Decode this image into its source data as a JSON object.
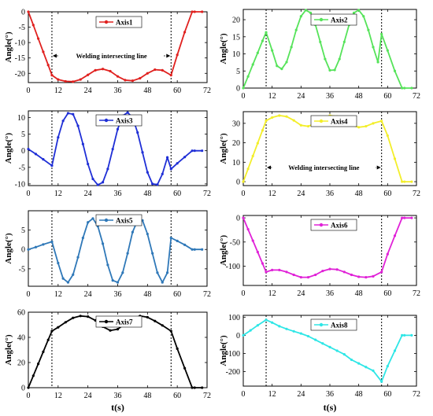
{
  "figure": {
    "xlabel": "t(s)",
    "ylabel": "Angle(°)",
    "annotation": "Welding intersecting line"
  },
  "chart_data": [
    {
      "type": "line",
      "name": "Axis1",
      "color": "#e0211f",
      "xlim": [
        0,
        72
      ],
      "ylim": [
        -23,
        0
      ],
      "xticks": [
        0,
        12,
        24,
        36,
        48,
        60,
        72
      ],
      "yticks": [
        0,
        -5,
        -10,
        -15,
        -20
      ],
      "vlines": [
        9.5,
        57.5
      ],
      "annotation": true,
      "x": [
        0,
        2,
        4,
        6,
        8,
        9.5,
        12,
        15,
        18,
        21,
        24,
        27,
        30,
        33,
        36,
        39,
        42,
        45,
        48,
        51,
        54,
        57.5,
        60,
        63,
        66,
        67,
        70
      ],
      "y": [
        0,
        -4.3,
        -8.7,
        -13,
        -17.3,
        -20.6,
        -22,
        -22.6,
        -22.7,
        -22,
        -20.5,
        -19,
        -18.6,
        -19.3,
        -21,
        -22.2,
        -22.4,
        -21.6,
        -20,
        -18.8,
        -19,
        -20.6,
        -14,
        -6.6,
        0,
        0,
        0
      ]
    },
    {
      "type": "line",
      "name": "Axis2",
      "color": "#56e35a",
      "xlim": [
        0,
        72
      ],
      "ylim": [
        0,
        23
      ],
      "xticks": [
        0,
        12,
        24,
        36,
        48,
        60,
        72
      ],
      "yticks": [
        0,
        5,
        10,
        15,
        20
      ],
      "vlines": [
        9.5,
        57.5
      ],
      "annotation": false,
      "x": [
        0,
        2,
        4,
        6,
        8,
        9.5,
        12,
        14,
        16,
        18,
        20,
        22,
        24,
        26,
        28,
        30,
        32,
        34,
        36,
        38,
        40,
        42,
        44,
        46,
        48,
        50,
        52,
        54,
        56,
        57.5,
        60,
        63,
        66,
        67,
        70
      ],
      "y": [
        0,
        3.4,
        6.9,
        10.3,
        13.8,
        16.3,
        11,
        6.5,
        5.6,
        7.6,
        12,
        17,
        21,
        22.8,
        22,
        18.5,
        13.5,
        8.5,
        5.2,
        5.3,
        8.5,
        13.5,
        18.5,
        22,
        22.8,
        21,
        17,
        12,
        7.6,
        15.8,
        11,
        5,
        0,
        0,
        0
      ]
    },
    {
      "type": "line",
      "name": "Axis3",
      "color": "#1f2fd6",
      "xlim": [
        0,
        72
      ],
      "ylim": [
        -10.5,
        12
      ],
      "xticks": [
        0,
        12,
        24,
        36,
        48,
        60,
        72
      ],
      "yticks": [
        10,
        5,
        0,
        -5,
        -10
      ],
      "vlines": [
        9.5,
        57.5
      ],
      "annotation": false,
      "x": [
        0,
        3,
        6,
        9.5,
        12,
        14,
        16,
        18,
        20,
        22,
        24,
        26,
        28,
        30,
        32,
        34,
        36,
        38,
        40,
        42,
        44,
        46,
        48,
        50,
        52,
        54,
        56,
        57.5,
        60,
        63,
        66,
        67,
        70
      ],
      "y": [
        0.5,
        -1,
        -2.6,
        -4.5,
        4,
        9,
        11.3,
        11,
        7.5,
        2,
        -4,
        -8.5,
        -10.3,
        -9.5,
        -5.5,
        0.5,
        6.5,
        10.5,
        11.5,
        10,
        5.5,
        -0.5,
        -6.5,
        -10,
        -10.2,
        -7,
        -2,
        -5.5,
        -3.8,
        -1.9,
        0,
        0,
        0
      ]
    },
    {
      "type": "line",
      "name": "Axis4",
      "color": "#f3ee2a",
      "xlim": [
        0,
        72
      ],
      "ylim": [
        -2,
        36
      ],
      "xticks": [
        0,
        12,
        24,
        36,
        48,
        60,
        72
      ],
      "yticks": [
        0,
        10,
        20,
        30
      ],
      "vlines": [
        9.5,
        57.5
      ],
      "annotation": true,
      "x": [
        0,
        2,
        4,
        6,
        8,
        9.5,
        12,
        15,
        18,
        21,
        24,
        27,
        30,
        33,
        36,
        39,
        42,
        45,
        48,
        51,
        54,
        57.5,
        60,
        63,
        66,
        67,
        70
      ],
      "y": [
        0,
        6.6,
        13.2,
        19.8,
        26.4,
        31.4,
        33,
        34,
        33.5,
        31.5,
        29,
        28.5,
        30,
        32.5,
        34,
        33.5,
        31.5,
        29,
        28,
        28.5,
        30,
        31.2,
        23.7,
        11.8,
        0,
        0,
        0
      ]
    },
    {
      "type": "line",
      "name": "Axis5",
      "color": "#2f78b8",
      "xlim": [
        0,
        72
      ],
      "ylim": [
        -9.5,
        10
      ],
      "xticks": [
        0,
        12,
        24,
        36,
        48,
        60,
        72
      ],
      "yticks": [
        5,
        0,
        -5
      ],
      "vlines": [
        9.5,
        57.5
      ],
      "annotation": false,
      "x": [
        0,
        3,
        6,
        9.5,
        12,
        14,
        16,
        18,
        20,
        22,
        24,
        26,
        28,
        30,
        32,
        34,
        36,
        38,
        40,
        42,
        44,
        46,
        48,
        50,
        52,
        54,
        56,
        57.5,
        60,
        63,
        66,
        67,
        70
      ],
      "y": [
        0,
        0.6,
        1.3,
        2,
        -3.5,
        -7.5,
        -8.5,
        -6.5,
        -2,
        3,
        7,
        8,
        6,
        1.5,
        -4,
        -8,
        -8.5,
        -6,
        -1,
        4.5,
        7.5,
        7.5,
        4,
        -1,
        -6,
        -8.5,
        -6,
        3,
        2.2,
        1.2,
        0,
        0,
        0
      ]
    },
    {
      "type": "line",
      "name": "Axis6",
      "color": "#e022d7",
      "xlim": [
        0,
        72
      ],
      "ylim": [
        -140,
        5
      ],
      "xticks": [
        0,
        12,
        24,
        36,
        48,
        60,
        72
      ],
      "yticks": [
        0,
        -50,
        -100
      ],
      "vlines": [
        9.5,
        57.5
      ],
      "annotation": false,
      "x": [
        0,
        2,
        4,
        6,
        8,
        9.5,
        12,
        15,
        18,
        21,
        24,
        27,
        30,
        33,
        36,
        39,
        42,
        45,
        48,
        51,
        54,
        57.5,
        60,
        63,
        66,
        67,
        70
      ],
      "y": [
        0,
        -23.6,
        -47.2,
        -70.8,
        -94.4,
        -112,
        -108,
        -108,
        -112,
        -118,
        -123,
        -123,
        -118,
        -110,
        -106,
        -107,
        -112,
        -118,
        -122,
        -123,
        -121,
        -112,
        -75,
        -37,
        0,
        0,
        0
      ]
    },
    {
      "type": "line",
      "name": "Axis7",
      "color": "#000000",
      "xlim": [
        0,
        72
      ],
      "ylim": [
        0,
        60
      ],
      "xticks": [
        0,
        12,
        24,
        36,
        48,
        60,
        72
      ],
      "yticks": [
        0,
        20,
        40,
        60
      ],
      "vlines": [
        9.5,
        57.5
      ],
      "annotation": false,
      "x": [
        0,
        2,
        4,
        6,
        8,
        9.5,
        12,
        15,
        18,
        21,
        24,
        27,
        30,
        33,
        36,
        39,
        42,
        45,
        48,
        51,
        54,
        57.5,
        60,
        63,
        66,
        67,
        70
      ],
      "y": [
        0,
        9.5,
        19,
        28.5,
        38,
        45,
        48,
        52,
        55.5,
        57,
        56.5,
        53.5,
        48.5,
        45.5,
        46.5,
        51,
        55,
        57,
        56,
        53,
        49.5,
        45,
        31,
        15.5,
        0,
        0,
        0
      ]
    },
    {
      "type": "line",
      "name": "Axis8",
      "color": "#2ee6e6",
      "xlim": [
        0,
        72
      ],
      "ylim": [
        -280,
        110
      ],
      "xticks": [
        0,
        12,
        24,
        36,
        48,
        60,
        72
      ],
      "yticks": [
        100,
        0,
        -100,
        -200
      ],
      "vlines": [
        9.5,
        57.5
      ],
      "annotation": false,
      "x": [
        0,
        3,
        6,
        9.5,
        12,
        15,
        18,
        21,
        24,
        27,
        30,
        33,
        36,
        39,
        42,
        45,
        48,
        51,
        54,
        57.5,
        60,
        63,
        66,
        67,
        70
      ],
      "y": [
        0,
        27,
        55,
        85,
        70,
        50,
        35,
        22,
        10,
        -5,
        -25,
        -45,
        -65,
        -85,
        -105,
        -135,
        -155,
        -175,
        -195,
        -255,
        -170,
        -85,
        0,
        0,
        0
      ]
    }
  ]
}
